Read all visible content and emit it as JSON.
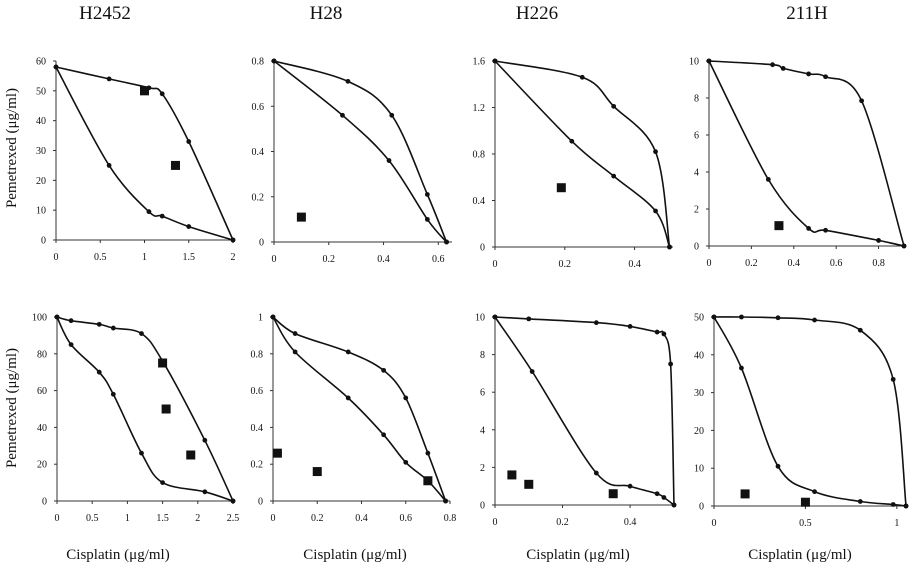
{
  "figure": {
    "column_titles": [
      "H2452",
      "H28",
      "H226",
      "211H"
    ],
    "row_ylabels": [
      "Pemetrexed (μg/ml)",
      "Pemetrexed (μg/ml)"
    ],
    "column_xlabels": [
      "Cisplatin (μg/ml)",
      "Cisplatin (μg/ml)",
      "Cisplatin (μg/ml)",
      "Cisplatin (μg/ml)"
    ]
  },
  "chart_data": [
    {
      "type": "scatter",
      "panel": "top-H2452",
      "title": "H2452",
      "xlabel": "",
      "ylabel": "Pemetrexed (μg/ml)",
      "xlim": [
        0,
        2
      ],
      "ylim": [
        0,
        60
      ],
      "xticks": [
        0,
        0.5,
        1,
        1.5,
        2
      ],
      "xtick_labels": [
        "0",
        "0.5",
        "1",
        "1.5",
        "2"
      ],
      "yticks": [
        0,
        10,
        20,
        30,
        40,
        50,
        60
      ],
      "ytick_labels": [
        "0",
        "10",
        "20",
        "30",
        "40",
        "50",
        "60"
      ],
      "curves": [
        {
          "points": [
            [
              0,
              58
            ],
            [
              0.6,
              54
            ],
            [
              1.05,
              51
            ],
            [
              1.2,
              49
            ],
            [
              1.5,
              33
            ],
            [
              2,
              0
            ]
          ]
        },
        {
          "points": [
            [
              0,
              58
            ],
            [
              0.6,
              25
            ],
            [
              1.05,
              9.5
            ],
            [
              1.2,
              8
            ],
            [
              1.5,
              4.5
            ],
            [
              2,
              0
            ]
          ]
        }
      ],
      "squares": [
        [
          1.0,
          50
        ],
        [
          1.35,
          25
        ]
      ]
    },
    {
      "type": "scatter",
      "panel": "top-H28",
      "title": "H28",
      "xlabel": "",
      "ylabel": "",
      "xlim": [
        0,
        0.65
      ],
      "ylim": [
        0,
        0.8
      ],
      "xticks": [
        0,
        0.2,
        0.4,
        0.6
      ],
      "xtick_labels": [
        "0",
        "0.2",
        "0.4",
        "0.6"
      ],
      "yticks": [
        0,
        0.2,
        0.4,
        0.6,
        0.8
      ],
      "ytick_labels": [
        "0",
        "0.2",
        "0.4",
        "0.6",
        "0.8"
      ],
      "curves": [
        {
          "points": [
            [
              0,
              0.8
            ],
            [
              0.27,
              0.71
            ],
            [
              0.43,
              0.56
            ],
            [
              0.56,
              0.21
            ],
            [
              0.63,
              0
            ]
          ]
        },
        {
          "points": [
            [
              0,
              0.8
            ],
            [
              0.25,
              0.56
            ],
            [
              0.42,
              0.36
            ],
            [
              0.56,
              0.1
            ],
            [
              0.63,
              0
            ]
          ]
        }
      ],
      "squares": [
        [
          0.1,
          0.11
        ]
      ]
    },
    {
      "type": "scatter",
      "panel": "top-H226",
      "title": "H226",
      "xlabel": "",
      "ylabel": "",
      "xlim": [
        0,
        0.51
      ],
      "ylim": [
        0,
        1.6
      ],
      "xticks": [
        0,
        0.2,
        0.4
      ],
      "xtick_labels": [
        "0",
        "0.2",
        "0.4"
      ],
      "yticks": [
        0,
        0.4,
        0.8,
        1.2,
        1.6
      ],
      "ytick_labels": [
        "0",
        "0.4",
        "0.8",
        "1.2",
        "1.6"
      ],
      "curves": [
        {
          "points": [
            [
              0,
              1.6
            ],
            [
              0.25,
              1.46
            ],
            [
              0.34,
              1.21
            ],
            [
              0.46,
              0.82
            ],
            [
              0.5,
              0
            ]
          ]
        },
        {
          "points": [
            [
              0,
              1.6
            ],
            [
              0.22,
              0.91
            ],
            [
              0.34,
              0.61
            ],
            [
              0.46,
              0.31
            ],
            [
              0.5,
              0
            ]
          ]
        }
      ],
      "squares": [
        [
          0.19,
          0.51
        ]
      ]
    },
    {
      "type": "scatter",
      "panel": "top-211H",
      "title": "211H",
      "xlabel": "",
      "ylabel": "",
      "xlim": [
        0,
        0.92
      ],
      "ylim": [
        0,
        10
      ],
      "xticks": [
        0,
        0.2,
        0.4,
        0.6,
        0.8
      ],
      "xtick_labels": [
        "0",
        "0.2",
        "0.4",
        "0.6",
        "0.8"
      ],
      "yticks": [
        0,
        2,
        4,
        6,
        8,
        10
      ],
      "ytick_labels": [
        "0",
        "2",
        "4",
        "6",
        "8",
        "10"
      ],
      "curves": [
        {
          "points": [
            [
              0,
              10
            ],
            [
              0.3,
              9.8
            ],
            [
              0.35,
              9.6
            ],
            [
              0.47,
              9.3
            ],
            [
              0.55,
              9.15
            ],
            [
              0.72,
              7.85
            ],
            [
              0.92,
              0
            ]
          ]
        },
        {
          "points": [
            [
              0,
              10
            ],
            [
              0.28,
              3.6
            ],
            [
              0.47,
              0.95
            ],
            [
              0.55,
              0.85
            ],
            [
              0.8,
              0.3
            ],
            [
              0.92,
              0
            ]
          ]
        }
      ],
      "squares": [
        [
          0.33,
          1.1
        ]
      ]
    },
    {
      "type": "scatter",
      "panel": "bottom-H2452",
      "title": "",
      "xlabel": "Cisplatin (μg/ml)",
      "ylabel": "Pemetrexed (μg/ml)",
      "xlim": [
        0,
        2.5
      ],
      "ylim": [
        0,
        100
      ],
      "xticks": [
        0,
        0.5,
        1,
        1.5,
        2,
        2.5
      ],
      "xtick_labels": [
        "0",
        "0.5",
        "1",
        "1.5",
        "2",
        "2.5"
      ],
      "yticks": [
        0,
        20,
        40,
        60,
        80,
        100
      ],
      "ytick_labels": [
        "0",
        "20",
        "40",
        "60",
        "80",
        "100"
      ],
      "curves": [
        {
          "points": [
            [
              0,
              100
            ],
            [
              0.2,
              98
            ],
            [
              0.6,
              96
            ],
            [
              0.8,
              94
            ],
            [
              1.2,
              91
            ],
            [
              1.5,
              76
            ],
            [
              2.1,
              33
            ],
            [
              2.5,
              0
            ]
          ]
        },
        {
          "points": [
            [
              0,
              100
            ],
            [
              0.2,
              85
            ],
            [
              0.6,
              70
            ],
            [
              0.8,
              58
            ],
            [
              1.2,
              26
            ],
            [
              1.5,
              10
            ],
            [
              2.1,
              5
            ],
            [
              2.5,
              0
            ]
          ]
        }
      ],
      "squares": [
        [
          1.5,
          75
        ],
        [
          1.55,
          50
        ],
        [
          1.9,
          25
        ]
      ]
    },
    {
      "type": "scatter",
      "panel": "bottom-H28",
      "title": "",
      "xlabel": "Cisplatin (μg/ml)",
      "ylabel": "",
      "xlim": [
        0,
        0.8
      ],
      "ylim": [
        0,
        1
      ],
      "xticks": [
        0,
        0.2,
        0.4,
        0.6,
        0.8
      ],
      "xtick_labels": [
        "0",
        "0.2",
        "0.4",
        "0.6",
        "0.8"
      ],
      "yticks": [
        0,
        0.2,
        0.4,
        0.6,
        0.8,
        1
      ],
      "ytick_labels": [
        "0",
        "0.2",
        "0.4",
        "0.6",
        "0.8",
        "1"
      ],
      "curves": [
        {
          "points": [
            [
              0,
              1
            ],
            [
              0.1,
              0.91
            ],
            [
              0.34,
              0.81
            ],
            [
              0.5,
              0.71
            ],
            [
              0.6,
              0.56
            ],
            [
              0.7,
              0.26
            ],
            [
              0.78,
              0
            ]
          ]
        },
        {
          "points": [
            [
              0,
              1
            ],
            [
              0.1,
              0.81
            ],
            [
              0.34,
              0.56
            ],
            [
              0.5,
              0.36
            ],
            [
              0.6,
              0.21
            ],
            [
              0.7,
              0.11
            ],
            [
              0.78,
              0
            ]
          ]
        }
      ],
      "squares": [
        [
          0.02,
          0.26
        ],
        [
          0.2,
          0.16
        ],
        [
          0.7,
          0.11
        ]
      ]
    },
    {
      "type": "scatter",
      "panel": "bottom-H226",
      "title": "",
      "xlabel": "Cisplatin (μg/ml)",
      "ylabel": "",
      "xlim": [
        0,
        0.53
      ],
      "ylim": [
        0,
        10
      ],
      "xticks": [
        0,
        0.2,
        0.4
      ],
      "xtick_labels": [
        "0",
        "0.2",
        "0.4"
      ],
      "yticks": [
        0,
        2,
        4,
        6,
        8,
        10
      ],
      "ytick_labels": [
        "0",
        "2",
        "4",
        "6",
        "8",
        "10"
      ],
      "curves": [
        {
          "points": [
            [
              0,
              10
            ],
            [
              0.1,
              9.9
            ],
            [
              0.3,
              9.7
            ],
            [
              0.4,
              9.5
            ],
            [
              0.48,
              9.2
            ],
            [
              0.5,
              9.1
            ],
            [
              0.52,
              7.5
            ],
            [
              0.53,
              0
            ]
          ]
        },
        {
          "points": [
            [
              0,
              10
            ],
            [
              0.11,
              7.1
            ],
            [
              0.3,
              1.7
            ],
            [
              0.4,
              1.0
            ],
            [
              0.48,
              0.6
            ],
            [
              0.5,
              0.4
            ],
            [
              0.53,
              0
            ]
          ]
        }
      ],
      "squares": [
        [
          0.05,
          1.6
        ],
        [
          0.1,
          1.1
        ],
        [
          0.35,
          0.6
        ]
      ]
    },
    {
      "type": "scatter",
      "panel": "bottom-211H",
      "title": "",
      "xlabel": "Cisplatin (μg/ml)",
      "ylabel": "",
      "xlim": [
        0,
        1.05
      ],
      "ylim": [
        0,
        50
      ],
      "xticks": [
        0,
        0.5,
        1
      ],
      "xtick_labels": [
        "0",
        "0.5",
        "1"
      ],
      "yticks": [
        0,
        10,
        20,
        30,
        40,
        50
      ],
      "ytick_labels": [
        "0",
        "10",
        "20",
        "30",
        "40",
        "50"
      ],
      "curves": [
        {
          "points": [
            [
              0,
              50
            ],
            [
              0.15,
              50
            ],
            [
              0.35,
              49.8
            ],
            [
              0.55,
              49.2
            ],
            [
              0.8,
              46.5
            ],
            [
              0.98,
              33.5
            ],
            [
              1.05,
              0
            ]
          ]
        },
        {
          "points": [
            [
              0,
              50
            ],
            [
              0.15,
              36.5
            ],
            [
              0.35,
              10.5
            ],
            [
              0.55,
              3.8
            ],
            [
              0.8,
              1.2
            ],
            [
              0.98,
              0.4
            ],
            [
              1.05,
              0
            ]
          ]
        }
      ],
      "squares": [
        [
          0.17,
          3.2
        ],
        [
          0.5,
          1.0
        ]
      ]
    }
  ]
}
